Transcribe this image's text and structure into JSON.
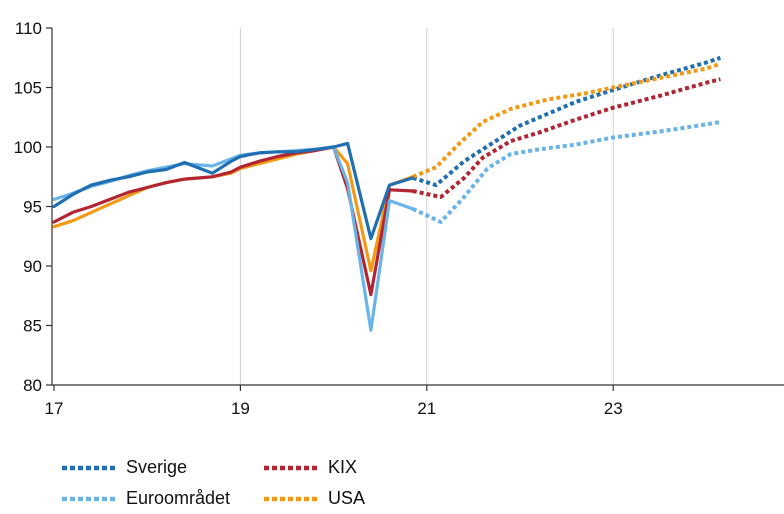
{
  "chart_data": {
    "type": "line",
    "title": "",
    "xlabel": "",
    "ylabel": "",
    "xlim": [
      17,
      25
    ],
    "ylim": [
      80,
      110
    ],
    "x_ticks": [
      17,
      19,
      21,
      23
    ],
    "x_tick_labels": [
      "17",
      "19",
      "21",
      "23"
    ],
    "y_ticks": [
      80,
      85,
      90,
      95,
      100,
      105,
      110
    ],
    "y_tick_labels": [
      "80",
      "85",
      "90",
      "95",
      "100",
      "105",
      "110"
    ],
    "grid": "vertical",
    "legend_position": "bottom-left",
    "series": [
      {
        "name": "Sverige",
        "color": "#1f6fb2",
        "actual": [
          [
            17.0,
            95.0
          ],
          [
            17.2,
            96.0
          ],
          [
            17.4,
            96.8
          ],
          [
            17.6,
            97.2
          ],
          [
            17.8,
            97.5
          ],
          [
            18.0,
            97.9
          ],
          [
            18.2,
            98.1
          ],
          [
            18.4,
            98.7
          ],
          [
            18.7,
            97.8
          ],
          [
            18.9,
            98.8
          ],
          [
            19.0,
            99.2
          ],
          [
            19.2,
            99.5
          ],
          [
            19.4,
            99.6
          ],
          [
            19.6,
            99.6
          ],
          [
            19.8,
            99.8
          ],
          [
            20.0,
            100.0
          ],
          [
            20.15,
            100.3
          ],
          [
            20.4,
            92.3
          ],
          [
            20.6,
            96.8
          ],
          [
            20.85,
            97.4
          ]
        ],
        "forecast": [
          [
            20.85,
            97.4
          ],
          [
            21.1,
            96.8
          ],
          [
            21.4,
            98.8
          ],
          [
            21.7,
            100.3
          ],
          [
            22.0,
            101.8
          ],
          [
            22.3,
            102.8
          ],
          [
            22.6,
            103.8
          ],
          [
            23.0,
            104.8
          ],
          [
            23.5,
            106.0
          ],
          [
            24.0,
            107.1
          ],
          [
            24.15,
            107.5
          ]
        ]
      },
      {
        "name": "Euroområdet",
        "color": "#6ab4e8",
        "actual": [
          [
            17.0,
            95.6
          ],
          [
            17.2,
            96.1
          ],
          [
            17.4,
            96.7
          ],
          [
            17.6,
            97.1
          ],
          [
            17.8,
            97.6
          ],
          [
            18.0,
            98.0
          ],
          [
            18.2,
            98.3
          ],
          [
            18.4,
            98.6
          ],
          [
            18.7,
            98.4
          ],
          [
            18.9,
            99.0
          ],
          [
            19.0,
            99.3
          ],
          [
            19.2,
            99.5
          ],
          [
            19.4,
            99.6
          ],
          [
            19.6,
            99.7
          ],
          [
            19.8,
            99.8
          ],
          [
            20.0,
            100.0
          ],
          [
            20.15,
            97.0
          ],
          [
            20.4,
            84.6
          ],
          [
            20.6,
            95.5
          ],
          [
            20.85,
            94.8
          ]
        ],
        "forecast": [
          [
            20.85,
            94.8
          ],
          [
            21.15,
            93.7
          ],
          [
            21.4,
            95.8
          ],
          [
            21.65,
            98.2
          ],
          [
            21.9,
            99.4
          ],
          [
            22.2,
            99.8
          ],
          [
            22.6,
            100.2
          ],
          [
            23.0,
            100.8
          ],
          [
            23.5,
            101.3
          ],
          [
            24.0,
            101.9
          ],
          [
            24.15,
            102.1
          ]
        ]
      },
      {
        "name": "KIX",
        "color": "#b22533",
        "actual": [
          [
            17.0,
            93.7
          ],
          [
            17.2,
            94.5
          ],
          [
            17.4,
            95.0
          ],
          [
            17.6,
            95.6
          ],
          [
            17.8,
            96.2
          ],
          [
            18.0,
            96.6
          ],
          [
            18.2,
            97.0
          ],
          [
            18.4,
            97.3
          ],
          [
            18.7,
            97.5
          ],
          [
            18.9,
            97.9
          ],
          [
            19.0,
            98.3
          ],
          [
            19.2,
            98.8
          ],
          [
            19.4,
            99.2
          ],
          [
            19.6,
            99.5
          ],
          [
            19.8,
            99.7
          ],
          [
            20.0,
            100.0
          ],
          [
            20.15,
            96.5
          ],
          [
            20.4,
            87.6
          ],
          [
            20.6,
            96.4
          ],
          [
            20.85,
            96.3
          ]
        ],
        "forecast": [
          [
            20.85,
            96.3
          ],
          [
            21.15,
            95.8
          ],
          [
            21.4,
            97.4
          ],
          [
            21.6,
            99.1
          ],
          [
            21.9,
            100.5
          ],
          [
            22.2,
            101.2
          ],
          [
            22.6,
            102.3
          ],
          [
            23.0,
            103.3
          ],
          [
            23.5,
            104.3
          ],
          [
            24.0,
            105.4
          ],
          [
            24.15,
            105.7
          ]
        ]
      },
      {
        "name": "USA",
        "color": "#f29a16",
        "actual": [
          [
            17.0,
            93.3
          ],
          [
            17.2,
            93.8
          ],
          [
            17.4,
            94.5
          ],
          [
            17.6,
            95.2
          ],
          [
            17.8,
            95.9
          ],
          [
            18.0,
            96.6
          ],
          [
            18.2,
            97.0
          ],
          [
            18.4,
            97.3
          ],
          [
            18.7,
            97.5
          ],
          [
            18.9,
            97.8
          ],
          [
            19.0,
            98.2
          ],
          [
            19.2,
            98.6
          ],
          [
            19.4,
            99.0
          ],
          [
            19.6,
            99.4
          ],
          [
            19.8,
            99.7
          ],
          [
            20.0,
            100.0
          ],
          [
            20.15,
            98.6
          ],
          [
            20.4,
            89.6
          ],
          [
            20.6,
            96.8
          ],
          [
            20.85,
            97.5
          ]
        ],
        "forecast": [
          [
            20.85,
            97.5
          ],
          [
            21.1,
            98.3
          ],
          [
            21.35,
            100.3
          ],
          [
            21.6,
            102.1
          ],
          [
            21.9,
            103.2
          ],
          [
            22.3,
            104.0
          ],
          [
            22.7,
            104.5
          ],
          [
            23.0,
            105.0
          ],
          [
            23.5,
            105.8
          ],
          [
            24.0,
            106.6
          ],
          [
            24.15,
            107.0
          ]
        ]
      }
    ]
  }
}
